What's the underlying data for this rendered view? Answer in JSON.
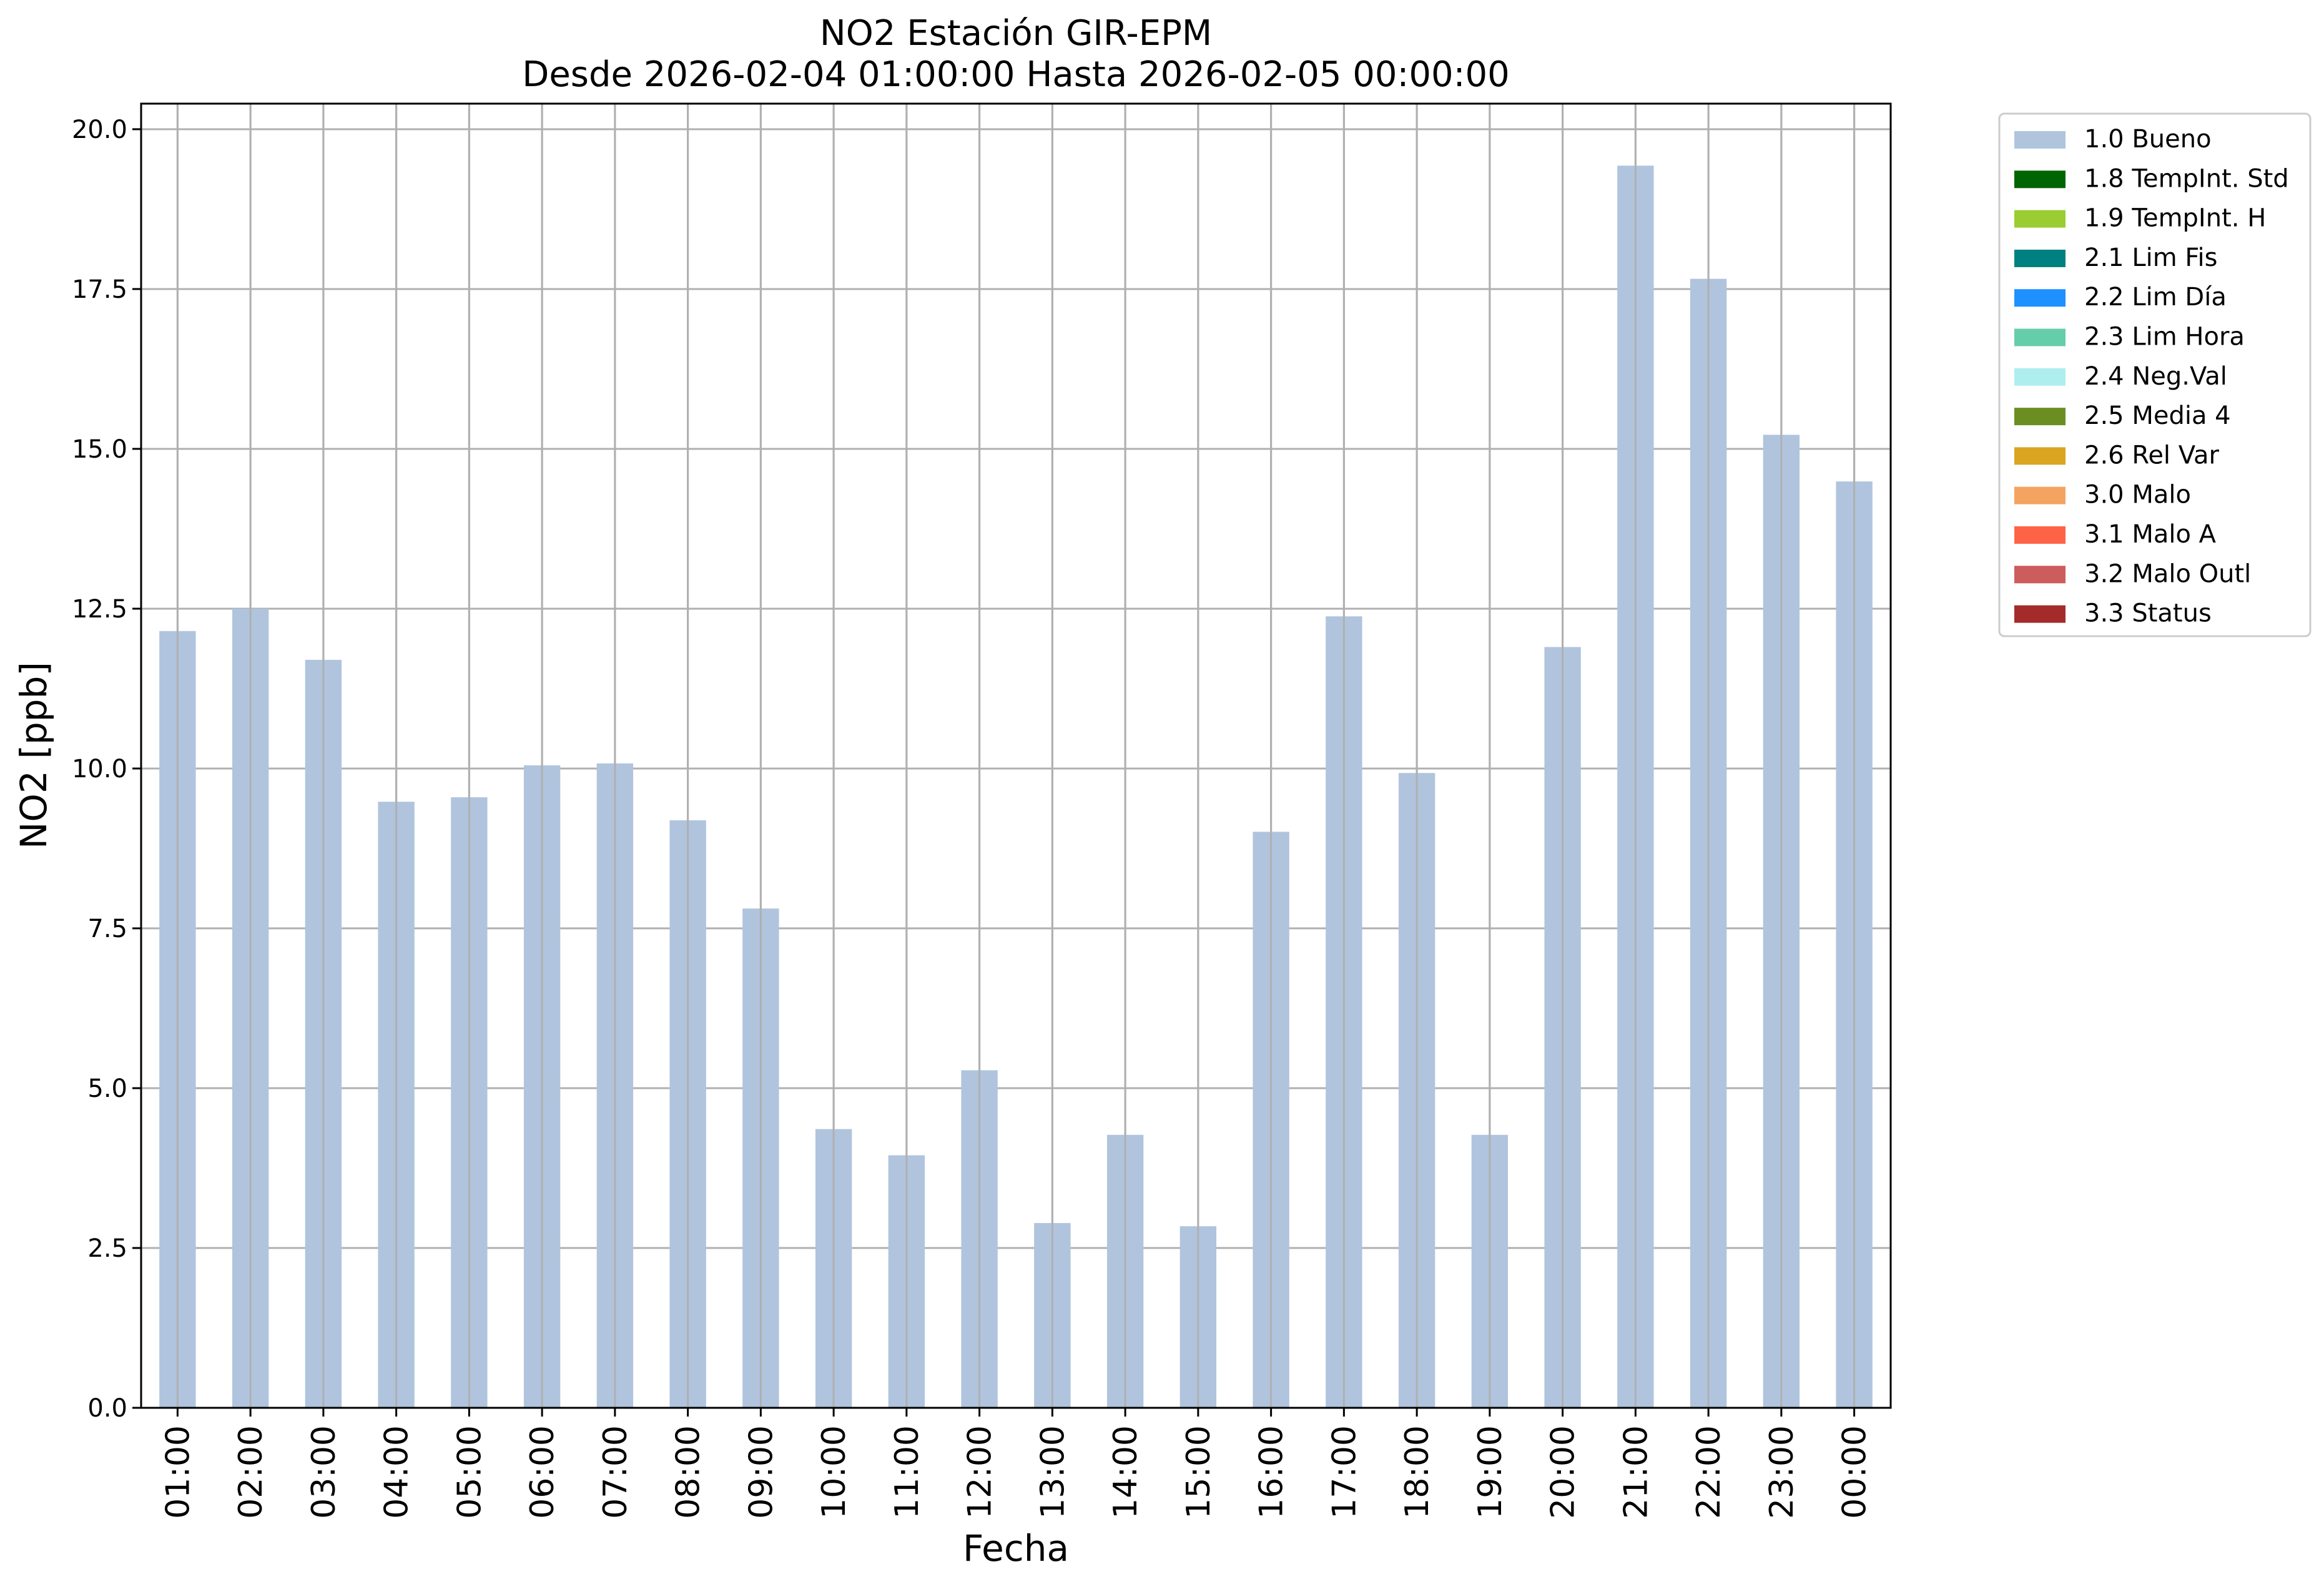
{
  "chart_data": {
    "type": "bar",
    "title": "NO2 Estación GIR-EPM",
    "subtitle": "Desde 2026-02-04 01:00:00 Hasta 2026-02-05 00:00:00",
    "xlabel": "Fecha",
    "ylabel": "NO2 [ppb]",
    "ylim": [
      0,
      20.4
    ],
    "yticks": [
      "0.0",
      "2.5",
      "5.0",
      "7.5",
      "10.0",
      "12.5",
      "15.0",
      "17.5",
      "20.0"
    ],
    "grid": true,
    "legend_position": "outside-top-right",
    "categories": [
      "01:00",
      "02:00",
      "03:00",
      "04:00",
      "05:00",
      "06:00",
      "07:00",
      "08:00",
      "09:00",
      "10:00",
      "11:00",
      "12:00",
      "13:00",
      "14:00",
      "15:00",
      "16:00",
      "17:00",
      "18:00",
      "19:00",
      "20:00",
      "21:00",
      "22:00",
      "23:00",
      "00:00"
    ],
    "series": [
      {
        "name": "1.0 Bueno",
        "color": "#b0c4de",
        "values": [
          12.15,
          12.5,
          11.7,
          9.48,
          9.55,
          10.05,
          10.08,
          9.19,
          7.81,
          4.36,
          3.95,
          5.28,
          2.89,
          4.27,
          2.84,
          9.01,
          12.38,
          9.93,
          4.27,
          11.9,
          19.43,
          17.66,
          15.22,
          14.49
        ]
      }
    ],
    "legend": [
      {
        "label": "1.0 Bueno",
        "color": "#b0c4de"
      },
      {
        "label": "1.8 TempInt. Std",
        "color": "#006400"
      },
      {
        "label": "1.9 TempInt. H",
        "color": "#9acd32"
      },
      {
        "label": "2.1 Lim Fis",
        "color": "#008080"
      },
      {
        "label": "2.2 Lim Día",
        "color": "#1e90ff"
      },
      {
        "label": "2.3 Lim Hora",
        "color": "#66cdaa"
      },
      {
        "label": "2.4 Neg.Val",
        "color": "#afeeee"
      },
      {
        "label": "2.5 Media 4",
        "color": "#6b8e23"
      },
      {
        "label": "2.6 Rel Var",
        "color": "#daa520"
      },
      {
        "label": "3.0 Malo",
        "color": "#f4a460"
      },
      {
        "label": "3.1 Malo A",
        "color": "#ff6347"
      },
      {
        "label": "3.2 Malo Outl",
        "color": "#cd5c5c"
      },
      {
        "label": "3.3 Status",
        "color": "#a52a2a"
      }
    ]
  }
}
